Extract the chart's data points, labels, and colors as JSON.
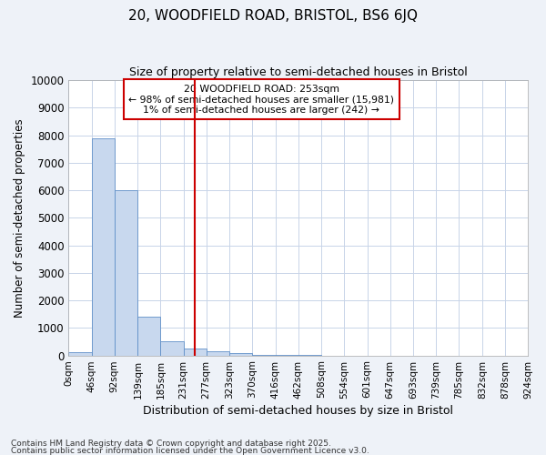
{
  "title1": "20, WOODFIELD ROAD, BRISTOL, BS6 6JQ",
  "title2": "Size of property relative to semi-detached houses in Bristol",
  "xlabel": "Distribution of semi-detached houses by size in Bristol",
  "ylabel": "Number of semi-detached properties",
  "bin_labels": [
    "0sqm",
    "46sqm",
    "92sqm",
    "139sqm",
    "185sqm",
    "231sqm",
    "277sqm",
    "323sqm",
    "370sqm",
    "416sqm",
    "462sqm",
    "508sqm",
    "554sqm",
    "601sqm",
    "647sqm",
    "693sqm",
    "739sqm",
    "785sqm",
    "832sqm",
    "878sqm",
    "924sqm"
  ],
  "bin_edges": [
    0,
    46,
    92,
    139,
    185,
    231,
    277,
    323,
    370,
    416,
    462,
    508,
    554,
    601,
    647,
    693,
    739,
    785,
    832,
    878,
    924
  ],
  "bar_heights": [
    130,
    7900,
    6000,
    1400,
    500,
    250,
    150,
    100,
    30,
    10,
    5,
    2,
    1,
    1,
    0,
    0,
    0,
    0,
    0,
    0
  ],
  "bar_color": "#c8d8ee",
  "bar_edgecolor": "#6090c8",
  "property_value": 253,
  "vline_color": "#cc0000",
  "annotation_line1": "20 WOODFIELD ROAD: 253sqm",
  "annotation_line2": "← 98% of semi-detached houses are smaller (15,981)",
  "annotation_line3": "1% of semi-detached houses are larger (242) →",
  "annotation_box_color": "#cc0000",
  "ylim": [
    0,
    10000
  ],
  "yticks": [
    0,
    1000,
    2000,
    3000,
    4000,
    5000,
    6000,
    7000,
    8000,
    9000,
    10000
  ],
  "grid_color": "#c8d4e8",
  "background_color": "#eef2f8",
  "plot_bg": "#ffffff",
  "footer1": "Contains HM Land Registry data © Crown copyright and database right 2025.",
  "footer2": "Contains public sector information licensed under the Open Government Licence v3.0."
}
